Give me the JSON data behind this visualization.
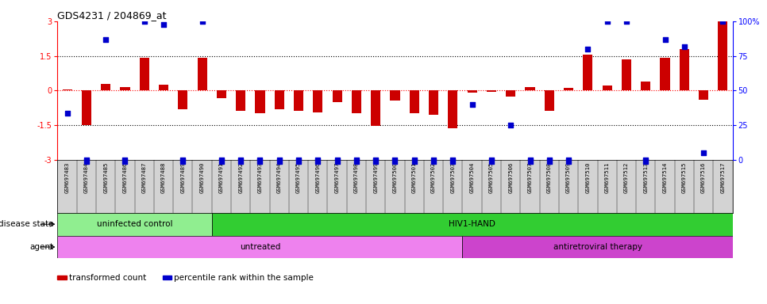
{
  "title": "GDS4231 / 204869_at",
  "samples": [
    "GSM697483",
    "GSM697484",
    "GSM697485",
    "GSM697486",
    "GSM697487",
    "GSM697488",
    "GSM697489",
    "GSM697490",
    "GSM697491",
    "GSM697492",
    "GSM697493",
    "GSM697494",
    "GSM697495",
    "GSM697496",
    "GSM697497",
    "GSM697498",
    "GSM697499",
    "GSM697500",
    "GSM697501",
    "GSM697502",
    "GSM697503",
    "GSM697504",
    "GSM697505",
    "GSM697506",
    "GSM697507",
    "GSM697508",
    "GSM697509",
    "GSM697510",
    "GSM697511",
    "GSM697512",
    "GSM697513",
    "GSM697514",
    "GSM697515",
    "GSM697516",
    "GSM697517"
  ],
  "bar_values": [
    0.05,
    -1.5,
    0.3,
    0.15,
    1.4,
    0.25,
    -0.8,
    1.4,
    -0.35,
    -0.9,
    -1.0,
    -0.8,
    -0.9,
    -0.95,
    -0.5,
    -1.0,
    -1.55,
    -0.45,
    -1.0,
    -1.05,
    -1.65,
    -0.1,
    -0.05,
    -0.25,
    0.15,
    -0.9,
    0.1,
    1.55,
    0.2,
    1.35,
    0.4,
    1.4,
    1.8,
    -0.4,
    3.0
  ],
  "percentile_values": [
    -1.0,
    -3.0,
    2.2,
    -3.0,
    3.0,
    2.85,
    -3.0,
    3.0,
    -3.0,
    -3.0,
    -3.0,
    -3.0,
    -3.0,
    -3.0,
    -3.0,
    -3.0,
    -3.0,
    -3.0,
    -3.0,
    -3.0,
    -3.0,
    -0.6,
    -3.0,
    -1.5,
    -3.0,
    -3.0,
    -3.0,
    1.8,
    3.0,
    3.0,
    -3.0,
    2.2,
    1.9,
    -2.7,
    3.0
  ],
  "bar_color": "#cc0000",
  "dot_color": "#0000cc",
  "ylim": [
    -3,
    3
  ],
  "yticks_left": [
    -3,
    -1.5,
    0,
    1.5,
    3
  ],
  "yticks_right_labels": [
    "0",
    "25",
    "50",
    "75",
    "100%"
  ],
  "disease_state_groups": [
    {
      "label": "uninfected control",
      "start": 0,
      "end": 8,
      "color": "#90ee90"
    },
    {
      "label": "HIV1-HAND",
      "start": 8,
      "end": 35,
      "color": "#32cd32"
    }
  ],
  "agent_groups": [
    {
      "label": "untreated",
      "start": 0,
      "end": 21,
      "color": "#ee82ee"
    },
    {
      "label": "antiretroviral therapy",
      "start": 21,
      "end": 35,
      "color": "#cc44cc"
    }
  ],
  "legend_items": [
    {
      "color": "#cc0000",
      "label": "transformed count"
    },
    {
      "color": "#0000cc",
      "label": "percentile rank within the sample"
    }
  ],
  "disease_state_label": "disease state",
  "agent_label": "agent",
  "xtick_bg": "#d3d3d3"
}
